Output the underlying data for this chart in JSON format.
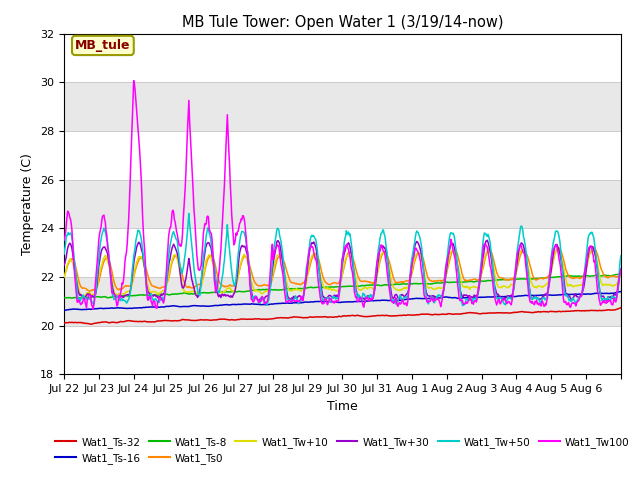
{
  "title": "MB Tule Tower: Open Water 1 (3/19/14-now)",
  "xlabel": "Time",
  "ylabel": "Temperature (C)",
  "ylim": [
    18,
    32
  ],
  "yticks": [
    18,
    20,
    22,
    24,
    26,
    28,
    30,
    32
  ],
  "fig_bg": "#ffffff",
  "plot_bg": "#ffffff",
  "band_colors": [
    "#ffffff",
    "#e8e8e8"
  ],
  "series_colors": {
    "Wat1_Ts-32": "#dd0000",
    "Wat1_Ts-16": "#0000cc",
    "Wat1_Ts-8": "#00bb00",
    "Wat1_Ts0": "#ff8800",
    "Wat1_Tw+10": "#dddd00",
    "Wat1_Tw+30": "#9900cc",
    "Wat1_Tw+50": "#00cccc",
    "Wat1_Tw100": "#ff00ff"
  },
  "x_tick_labels": [
    "Jul 22",
    "Jul 23",
    "Jul 24",
    "Jul 25",
    "Jul 26",
    "Jul 27",
    "Jul 28",
    "Jul 29",
    "Jul 30",
    "Jul 31",
    "Aug 1",
    "Aug 2",
    "Aug 3",
    "Aug 4",
    "Aug 5",
    "Aug 6"
  ],
  "num_days": 16,
  "legend_box_color": "#ffffcc",
  "legend_box_edge": "#999900",
  "legend_label_color": "#880000",
  "legend_label": "MB_tule"
}
